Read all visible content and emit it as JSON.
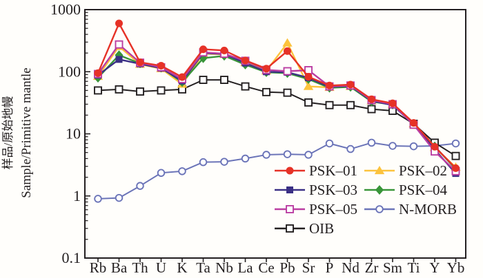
{
  "figure": {
    "background": "#fffefb",
    "axis_color": "#231f20"
  },
  "y_axis": {
    "label_line1_zh": "样品/原始地幔",
    "label_line2_en": "Sample/Primitive mantle",
    "scale": "log",
    "tick_labels": [
      "0.1",
      "1",
      "10",
      "100",
      "1000"
    ],
    "min": 0.1,
    "max": 1000
  },
  "chart_data": {
    "type": "line",
    "title": "",
    "xlabel": "",
    "ylabel": "样品/原始地幔 Sample/Primitive mantle",
    "ylim": [
      0.1,
      1000
    ],
    "yscale": "log",
    "grid": false,
    "categories": [
      "Rb",
      "Ba",
      "Th",
      "U",
      "K",
      "Ta",
      "Nb",
      "La",
      "Ce",
      "Pb",
      "Sr",
      "P",
      "Nd",
      "Zr",
      "Sm",
      "Ti",
      "Y",
      "Yb"
    ],
    "series": [
      {
        "name": "PSK–01",
        "color": "#e63227",
        "marker": "circle",
        "fill": "solid",
        "values": [
          95,
          600,
          142,
          125,
          82,
          230,
          220,
          152,
          112,
          215,
          83,
          60,
          62,
          36,
          31,
          15,
          6.2,
          2.8
        ]
      },
      {
        "name": "PSK–02",
        "color": "#fcc33d",
        "marker": "triangle",
        "fill": "solid",
        "values": [
          84,
          255,
          132,
          112,
          63,
          195,
          190,
          140,
          103,
          290,
          58,
          56,
          58,
          34,
          30,
          14.5,
          6.0,
          2.9
        ]
      },
      {
        "name": "PSK–03",
        "color": "#3b3085",
        "marker": "square",
        "fill": "solid",
        "values": [
          88,
          158,
          134,
          114,
          71,
          200,
          192,
          138,
          100,
          98,
          80,
          57,
          59,
          34,
          29,
          14.2,
          5.6,
          2.3
        ]
      },
      {
        "name": "PSK–04",
        "color": "#399539",
        "marker": "diamond",
        "fill": "solid",
        "values": [
          80,
          185,
          136,
          116,
          68,
          165,
          180,
          130,
          98,
          95,
          76,
          55,
          57,
          33,
          29.5,
          14.5,
          6.3,
          2.7
        ]
      },
      {
        "name": "PSK–05",
        "color": "#bb3da1",
        "marker": "square",
        "fill": "open",
        "values": [
          92,
          275,
          140,
          118,
          76,
          205,
          195,
          150,
          107,
          102,
          106,
          58,
          60,
          35,
          30,
          14.0,
          5.2,
          2.5
        ]
      },
      {
        "name": "N-MORB",
        "color": "#6b74b8",
        "marker": "circle",
        "fill": "open",
        "values": [
          0.9,
          0.93,
          1.45,
          2.35,
          2.5,
          3.5,
          3.55,
          4.0,
          4.6,
          4.7,
          4.6,
          7.0,
          5.7,
          7.2,
          6.4,
          6.3,
          6.4,
          7.0
        ]
      },
      {
        "name": "OIB",
        "color": "#231f20",
        "marker": "square",
        "fill": "open",
        "values": [
          50,
          52,
          48,
          50,
          52,
          74,
          74,
          58,
          47,
          46,
          32,
          29,
          29,
          25,
          23.5,
          14.5,
          7.2,
          4.4
        ]
      }
    ],
    "legend": {
      "position": "inside-bottom-right",
      "columns": 2,
      "order": [
        "PSK–01",
        "PSK–02",
        "PSK–03",
        "PSK–04",
        "PSK–05",
        "N-MORB",
        "OIB"
      ]
    },
    "draw_order": [
      "N-MORB",
      "OIB",
      "PSK–02",
      "PSK–04",
      "PSK–03",
      "PSK–05",
      "PSK–01"
    ]
  }
}
